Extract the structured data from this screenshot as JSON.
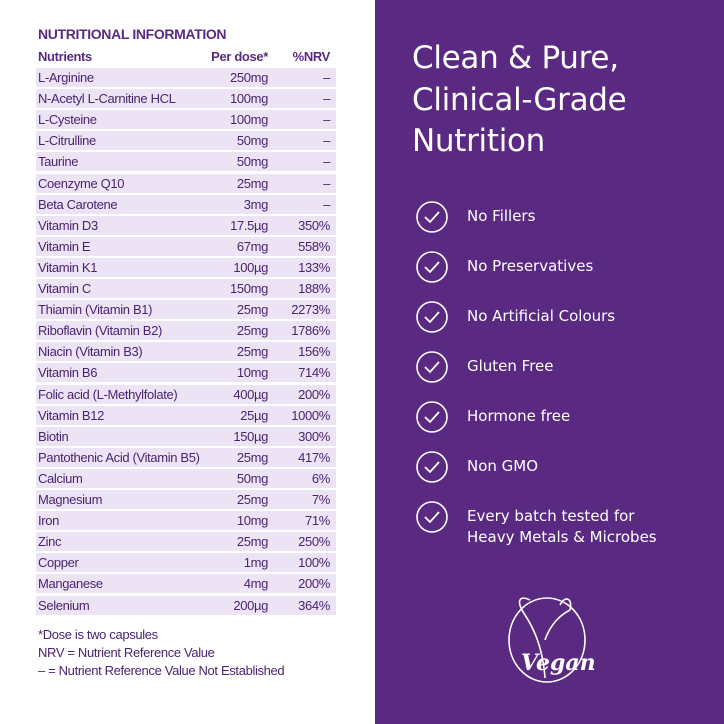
{
  "table": {
    "title": "NUTRITIONAL INFORMATION",
    "header": [
      "Nutrients",
      "Per dose*",
      "%NRV"
    ],
    "rows": [
      [
        "L-Arginine",
        "250mg",
        "–"
      ],
      [
        "N-Acetyl L-Carnitine HCL",
        "100mg",
        "–"
      ],
      [
        "L-Cysteine",
        "100mg",
        "–"
      ],
      [
        "L-Citrulline",
        "50mg",
        "–"
      ],
      [
        "Taurine",
        "50mg",
        "–"
      ],
      [
        "Coenzyme Q10",
        "25mg",
        "–"
      ],
      [
        "Beta Carotene",
        "3mg",
        "–"
      ],
      [
        "Vitamin D3",
        "17.5µg",
        "350%"
      ],
      [
        "Vitamin E",
        "67mg",
        "558%"
      ],
      [
        "Vitamin K1",
        "100µg",
        "133%"
      ],
      [
        "Vitamin C",
        "150mg",
        "188%"
      ],
      [
        "Thiamin (Vitamin B1)",
        "25mg",
        "2273%"
      ],
      [
        "Riboflavin (Vitamin B2)",
        "25mg",
        "1786%"
      ],
      [
        "Niacin (Vitamin B3)",
        "25mg",
        "156%"
      ],
      [
        "Vitamin B6",
        "10mg",
        "714%"
      ],
      [
        "Folic acid (L-Methylfolate)",
        "400µg",
        "200%"
      ],
      [
        "Vitamin B12",
        "25µg",
        "1000%"
      ],
      [
        "Biotin",
        "150µg",
        "300%"
      ],
      [
        "Pantothenic Acid (Vitamin B5)",
        "25mg",
        "417%"
      ],
      [
        "Calcium",
        "50mg",
        "6%"
      ],
      [
        "Magnesium",
        "25mg",
        "7%"
      ],
      [
        "Iron",
        "10mg",
        "71%"
      ],
      [
        "Zinc",
        "25mg",
        "250%"
      ],
      [
        "Copper",
        "1mg",
        "100%"
      ],
      [
        "Manganese",
        "4mg",
        "200%"
      ],
      [
        "Selenium",
        "200µg",
        "364%"
      ]
    ],
    "footnotes": [
      "*Dose is two capsules",
      "NRV = Nutrient Reference Value",
      "– = Nutrient Reference Value Not Established"
    ]
  },
  "panel": {
    "title": [
      "Clean & Pure,",
      "Clinical-Grade",
      "Nutrition"
    ],
    "features": [
      [
        "No Fillers"
      ],
      [
        "No Preservatives"
      ],
      [
        "No Artificial Colours"
      ],
      [
        "Gluten Free"
      ],
      [
        "Hormone free"
      ],
      [
        "Non GMO"
      ],
      [
        "Every batch tested for",
        "Heavy Metals & Microbes"
      ]
    ],
    "logo": "Vegan"
  }
}
